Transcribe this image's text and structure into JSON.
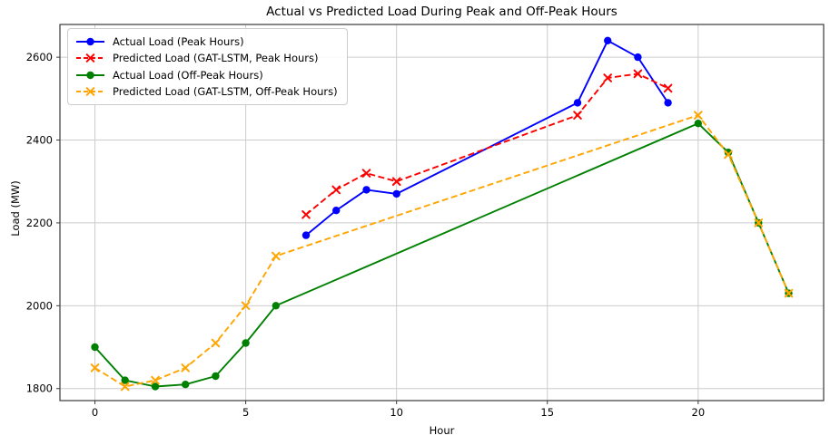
{
  "chart_data": {
    "type": "line",
    "title": "Actual vs Predicted Load During Peak and Off-Peak Hours",
    "xlabel": "Hour",
    "ylabel": "Load (MW)",
    "xlim": [
      -1.16,
      24.16
    ],
    "ylim": [
      1771,
      2679
    ],
    "x_ticks": [
      0,
      5,
      10,
      15,
      20
    ],
    "y_ticks": [
      1800,
      2000,
      2200,
      2400,
      2600
    ],
    "grid": true,
    "grid_color": "#cccccc",
    "background_color": "#ffffff",
    "legend_position": "upper left",
    "series": [
      {
        "name": "Actual Load (Peak Hours)",
        "color": "#0000ff",
        "line_style": "solid",
        "marker": "circle",
        "x": [
          7,
          8,
          9,
          10,
          16,
          17,
          18,
          19
        ],
        "y": [
          2170,
          2230,
          2280,
          2270,
          2490,
          2640,
          2600,
          2490
        ]
      },
      {
        "name": "Predicted Load (GAT-LSTM, Peak Hours)",
        "color": "#ff0000",
        "line_style": "dashed",
        "marker": "x",
        "x": [
          7,
          8,
          9,
          10,
          16,
          17,
          18,
          19
        ],
        "y": [
          2220,
          2280,
          2320,
          2300,
          2460,
          2550,
          2560,
          2525
        ]
      },
      {
        "name": "Actual Load (Off-Peak Hours)",
        "color": "#008000",
        "line_style": "solid",
        "marker": "circle",
        "x": [
          0,
          1,
          2,
          3,
          4,
          5,
          6,
          20,
          21,
          22,
          23
        ],
        "y": [
          1900,
          1820,
          1805,
          1810,
          1830,
          1910,
          2000,
          2440,
          2370,
          2200,
          2030
        ]
      },
      {
        "name": "Predicted Load (GAT-LSTM, Off-Peak Hours)",
        "color": "#ffa500",
        "line_style": "dashed",
        "marker": "x",
        "x": [
          0,
          1,
          2,
          3,
          4,
          5,
          6,
          20,
          21,
          22,
          23
        ],
        "y": [
          1850,
          1805,
          1820,
          1850,
          1910,
          2000,
          2120,
          2460,
          2365,
          2200,
          2030
        ]
      }
    ]
  }
}
